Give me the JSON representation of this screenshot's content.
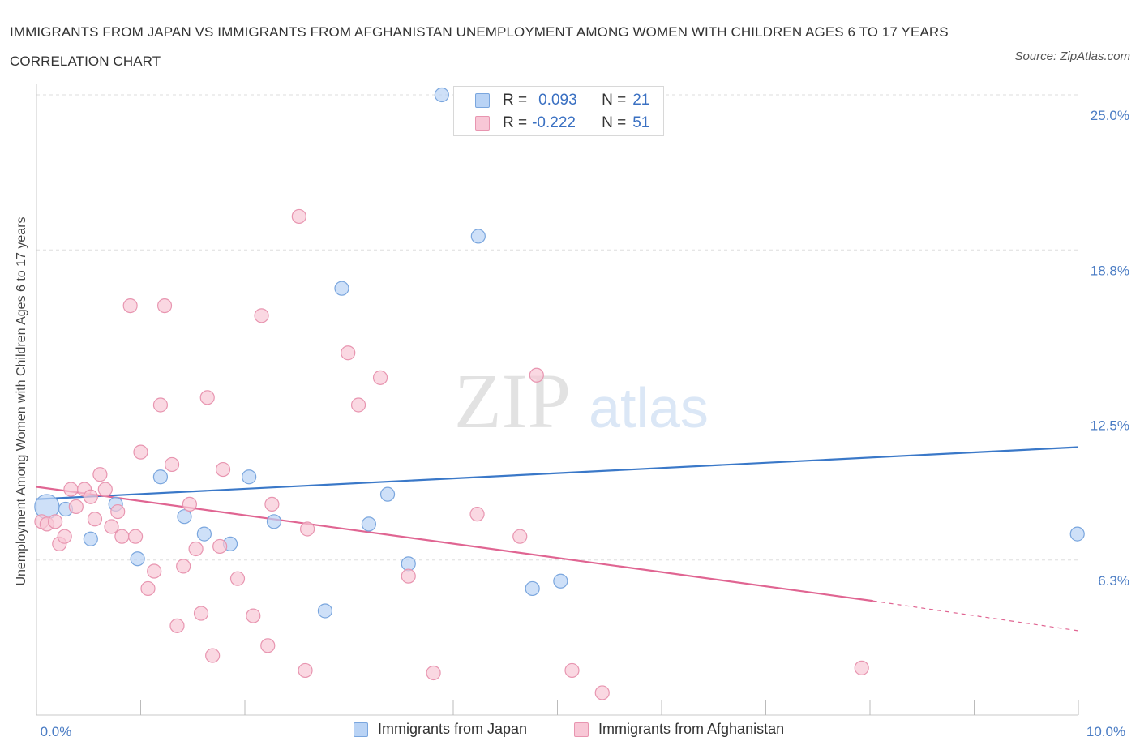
{
  "title": "IMMIGRANTS FROM JAPAN VS IMMIGRANTS FROM AFGHANISTAN UNEMPLOYMENT AMONG WOMEN WITH CHILDREN AGES 6 TO 17 YEARS CORRELATION CHART",
  "source": "Source: ZipAtlas.com",
  "watermark": {
    "zip": "ZIP",
    "atlas": "atlas"
  },
  "legend_top": [
    {
      "r_label": "R =",
      "r_value": "0.093",
      "n_label": "N =",
      "n_value": "21"
    },
    {
      "r_label": "R =",
      "r_value": "-0.222",
      "n_label": "N =",
      "n_value": "51"
    }
  ],
  "legend_bottom": [
    {
      "label": "Immigrants from Japan"
    },
    {
      "label": "Immigrants from Afghanistan"
    }
  ],
  "colors": {
    "japan_fill": "#b9d3f5",
    "japan_stroke": "#7aa6de",
    "japan_line": "#3a78c8",
    "afghan_fill": "#f8c7d6",
    "afghan_stroke": "#e895b0",
    "afghan_line": "#e06592",
    "tick": "#4a7cc4",
    "grid": "#dddddd"
  },
  "chart_data": {
    "type": "scatter",
    "ylabel": "Unemployment Among Women with Children Ages 6 to 17 years",
    "xlim": [
      0,
      10
    ],
    "ylim": [
      0,
      25
    ],
    "x_tick_labels": [
      {
        "value": 0,
        "label": "0.0%"
      },
      {
        "value": 10,
        "label": "10.0%"
      }
    ],
    "y_tick_labels": [
      {
        "value": 6.25,
        "label": "6.3%"
      },
      {
        "value": 12.5,
        "label": "12.5%"
      },
      {
        "value": 18.75,
        "label": "18.8%"
      },
      {
        "value": 25,
        "label": "25.0%"
      }
    ],
    "grid": true,
    "series": [
      {
        "name": "Immigrants from Japan",
        "R": 0.093,
        "N": 21,
        "trend": {
          "x": [
            0,
            10
          ],
          "y": [
            8.7,
            10.8
          ]
        },
        "points": [
          {
            "x": 0.1,
            "y": 8.4,
            "big": true
          },
          {
            "x": 0.28,
            "y": 8.3
          },
          {
            "x": 0.52,
            "y": 7.1
          },
          {
            "x": 0.76,
            "y": 8.5
          },
          {
            "x": 0.97,
            "y": 6.3
          },
          {
            "x": 1.19,
            "y": 9.6
          },
          {
            "x": 1.42,
            "y": 8.0
          },
          {
            "x": 1.61,
            "y": 7.3
          },
          {
            "x": 1.86,
            "y": 6.9
          },
          {
            "x": 2.04,
            "y": 9.6
          },
          {
            "x": 2.28,
            "y": 7.8
          },
          {
            "x": 2.93,
            "y": 17.2
          },
          {
            "x": 2.77,
            "y": 4.2
          },
          {
            "x": 3.19,
            "y": 7.7
          },
          {
            "x": 3.37,
            "y": 8.9
          },
          {
            "x": 3.57,
            "y": 6.1
          },
          {
            "x": 3.89,
            "y": 25.0
          },
          {
            "x": 4.24,
            "y": 19.3
          },
          {
            "x": 4.76,
            "y": 5.1
          },
          {
            "x": 5.03,
            "y": 5.4
          },
          {
            "x": 9.99,
            "y": 7.3
          }
        ]
      },
      {
        "name": "Immigrants from Afghanistan",
        "R": -0.222,
        "N": 51,
        "trend": {
          "x": [
            0,
            8.03
          ],
          "y": [
            9.2,
            4.6
          ]
        },
        "trend_dashed": {
          "x": [
            8.03,
            10
          ],
          "y": [
            4.6,
            3.4
          ]
        },
        "points": [
          {
            "x": 0.05,
            "y": 7.8
          },
          {
            "x": 0.1,
            "y": 7.7
          },
          {
            "x": 0.18,
            "y": 7.8
          },
          {
            "x": 0.22,
            "y": 6.9
          },
          {
            "x": 0.27,
            "y": 7.2
          },
          {
            "x": 0.33,
            "y": 9.1
          },
          {
            "x": 0.38,
            "y": 8.4
          },
          {
            "x": 0.46,
            "y": 9.1
          },
          {
            "x": 0.52,
            "y": 8.8
          },
          {
            "x": 0.56,
            "y": 7.9
          },
          {
            "x": 0.61,
            "y": 9.7
          },
          {
            "x": 0.66,
            "y": 9.1
          },
          {
            "x": 0.72,
            "y": 7.6
          },
          {
            "x": 0.78,
            "y": 8.2
          },
          {
            "x": 0.82,
            "y": 7.2
          },
          {
            "x": 0.9,
            "y": 16.5
          },
          {
            "x": 0.95,
            "y": 7.2
          },
          {
            "x": 1.0,
            "y": 10.6
          },
          {
            "x": 1.07,
            "y": 5.1
          },
          {
            "x": 1.13,
            "y": 5.8
          },
          {
            "x": 1.19,
            "y": 12.5
          },
          {
            "x": 1.23,
            "y": 16.5
          },
          {
            "x": 1.3,
            "y": 10.1
          },
          {
            "x": 1.35,
            "y": 3.6
          },
          {
            "x": 1.41,
            "y": 6.0
          },
          {
            "x": 1.47,
            "y": 8.5
          },
          {
            "x": 1.53,
            "y": 6.7
          },
          {
            "x": 1.58,
            "y": 4.1
          },
          {
            "x": 1.64,
            "y": 12.8
          },
          {
            "x": 1.69,
            "y": 2.4
          },
          {
            "x": 1.76,
            "y": 6.8
          },
          {
            "x": 1.79,
            "y": 9.9
          },
          {
            "x": 1.93,
            "y": 5.5
          },
          {
            "x": 2.08,
            "y": 4.0
          },
          {
            "x": 2.16,
            "y": 16.1
          },
          {
            "x": 2.22,
            "y": 2.8
          },
          {
            "x": 2.26,
            "y": 8.5
          },
          {
            "x": 2.52,
            "y": 20.1
          },
          {
            "x": 2.58,
            "y": 1.8
          },
          {
            "x": 2.6,
            "y": 7.5
          },
          {
            "x": 2.99,
            "y": 14.6
          },
          {
            "x": 3.09,
            "y": 12.5
          },
          {
            "x": 3.3,
            "y": 13.6
          },
          {
            "x": 3.57,
            "y": 5.6
          },
          {
            "x": 3.81,
            "y": 1.7
          },
          {
            "x": 4.23,
            "y": 8.1
          },
          {
            "x": 4.64,
            "y": 7.2
          },
          {
            "x": 4.8,
            "y": 13.7
          },
          {
            "x": 5.14,
            "y": 1.8
          },
          {
            "x": 5.43,
            "y": 0.9
          },
          {
            "x": 7.92,
            "y": 1.9
          }
        ]
      }
    ]
  }
}
